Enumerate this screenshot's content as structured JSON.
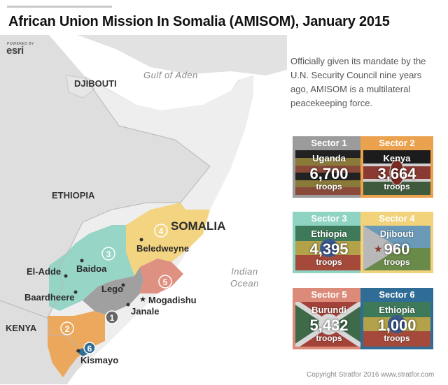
{
  "title": "African Union Mission In Somalia (AMISOM),  January 2015",
  "basemap_credit": {
    "small": "POWERED BY",
    "brand": "esri"
  },
  "map": {
    "countries": {
      "djibouti": "DJIBOUTI",
      "ethiopia": "ETHIOPIA",
      "somalia": "SOMALIA",
      "kenya": "KENYA"
    },
    "waters": {
      "gulf": "Gulf of Aden",
      "ocean_line1": "Indian",
      "ocean_line2": "Ocean"
    },
    "cities": {
      "beledweyne": "Beledweyne",
      "baidoa": "Baidoa",
      "el_adde": "El-Adde",
      "lego": "Lego",
      "baardheere": "Baardheere",
      "mogadishu": "Mogadishu",
      "janale": "Janale",
      "kismayo": "Kismayo"
    },
    "capital_symbol": "star",
    "sector_markers": [
      "1",
      "2",
      "3",
      "4",
      "5",
      "6"
    ]
  },
  "intro": "Officially given its mandate by the U.N. Security Council nine years ago, AMISOM is a multilateral peacekeeping force.",
  "sectors": [
    {
      "sector": "Sector 1",
      "country": "Uganda",
      "troops": "6,700",
      "unit": "troops",
      "color": "#9b9b9b"
    },
    {
      "sector": "Sector 2",
      "country": "Kenya",
      "troops": "3,664",
      "unit": "troops",
      "color": "#eba24f"
    },
    {
      "sector": "Sector 3",
      "country": "Ethiopia",
      "troops": "4,395",
      "unit": "troops",
      "color": "#8fd3c3"
    },
    {
      "sector": "Sector 4",
      "country": "Djibouti",
      "troops": "960",
      "unit": "troops",
      "color": "#f2d27a"
    },
    {
      "sector": "Sector 5",
      "country": "Burundi",
      "troops": "5,432",
      "unit": "troops",
      "color": "#dc8a7a"
    },
    {
      "sector": "Sector 6",
      "country": "Ethiopia",
      "troops": "1,000",
      "unit": "troops",
      "color": "#2f6d96"
    }
  ],
  "colors": {
    "sector1": "#9b9b9b",
    "sector2": "#eba24f",
    "sector3": "#8fd3c3",
    "sector4": "#f2d27a",
    "sector5": "#dc8a7a",
    "sector6": "#2f6d96",
    "land": "#d9d9d9",
    "somalia_land": "#eeeeee",
    "water": "#ffffff"
  },
  "copyright": "Copyright Stratfor 2016   www.stratfor.com"
}
